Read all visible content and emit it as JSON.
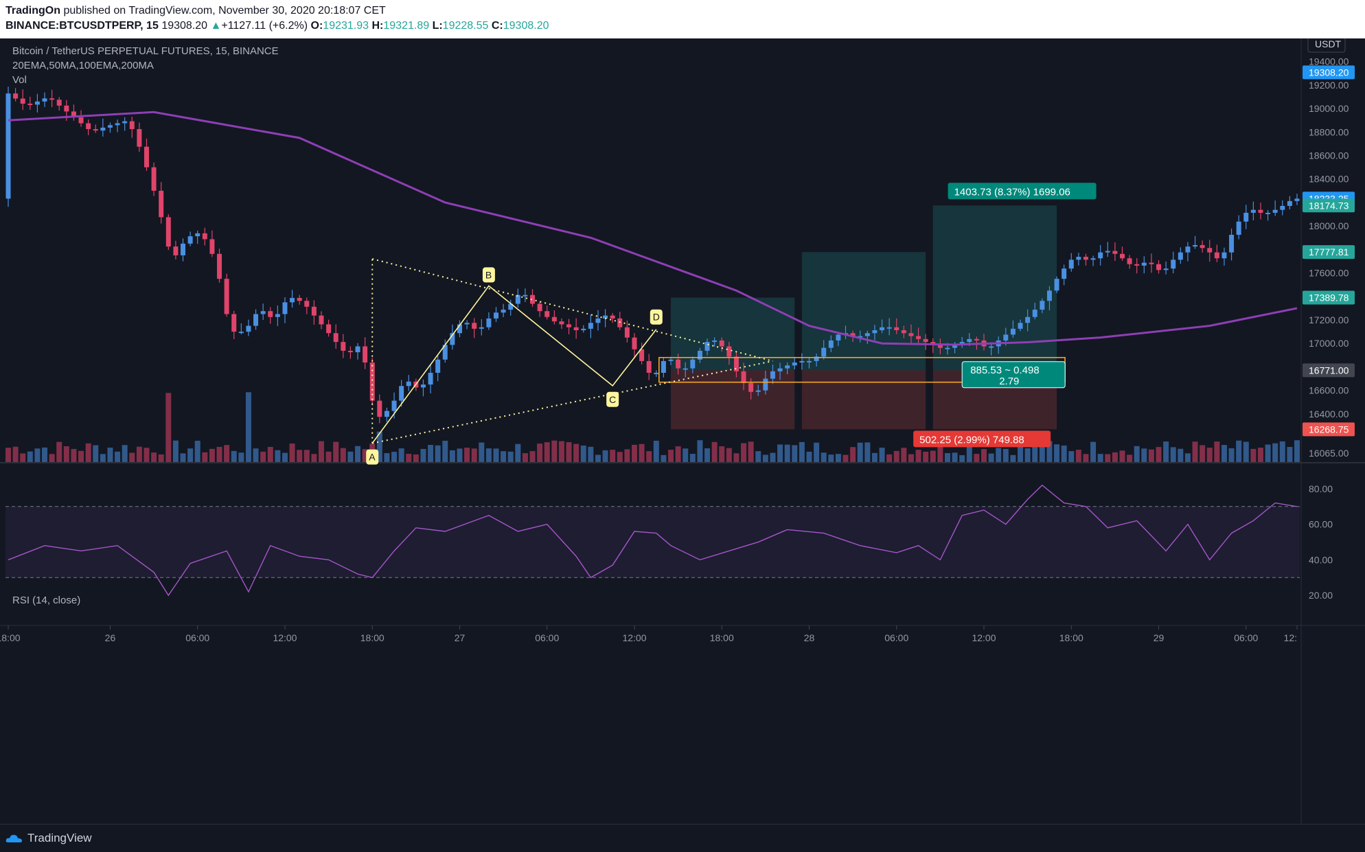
{
  "header": {
    "publisher": "TradingOn",
    "published_text": "published on TradingView.com, November 30, 2020 20:18:07 CET",
    "symbol": "BINANCE:BTCUSDTPERP, 15",
    "last_price": "19308.20",
    "change": "+1127.11 (+6.2%)",
    "o_label": "O:",
    "o": "19231.93",
    "h_label": "H:",
    "h": "19321.89",
    "l_label": "L:",
    "l": "19228.55",
    "c_label": "C:",
    "c": "19308.20"
  },
  "legend": {
    "title": "Bitcoin / TetherUS PERPETUAL FUTURES, 15, BINANCE",
    "mas": "20EMA,50MA,100EMA,200MA",
    "vol": "Vol",
    "rsi": "RSI (14, close)"
  },
  "footer": {
    "brand": "TradingView"
  },
  "colors": {
    "background": "#131722",
    "bull": "#4a90e2",
    "bear": "#e0446a",
    "ma": "#8e3fb5",
    "rsi": "#a656c9",
    "target": "#26a69a",
    "stop": "#ef5350",
    "pattern": "#fff59d",
    "zone": "#f5a623"
  },
  "chart_data": {
    "type": "candlestick",
    "currency_label": "USDT",
    "y_ticks": [
      16065,
      16400,
      16600,
      16800,
      17000,
      17200,
      17400,
      17600,
      17800,
      18000,
      18200,
      18400,
      18600,
      18800,
      19000,
      19200,
      19400
    ],
    "y_tick_labels": [
      "16065.00",
      "16400.00",
      "16600.00",
      "16800.00",
      "17000.00",
      "17200.00",
      "17400.00",
      "17600.00",
      "17800.00",
      "18000.00",
      "18200.00",
      "18400.00",
      "18600.00",
      "18800.00",
      "19000.00",
      "19200.00",
      "19400.00"
    ],
    "x_ticks": [
      "18:00",
      "26",
      "06:00",
      "12:00",
      "18:00",
      "27",
      "06:00",
      "12:00",
      "18:00",
      "28",
      "06:00",
      "12:00",
      "18:00",
      "29",
      "06:00",
      "12:"
    ],
    "price_tags": [
      {
        "label": "19308.20",
        "color": "#2196f3"
      },
      {
        "label": "18233.25",
        "color": "#2196f3"
      },
      {
        "label": "18174.73",
        "color": "#26a69a"
      },
      {
        "label": "17777.81",
        "color": "#26a69a"
      },
      {
        "label": "17389.78",
        "color": "#26a69a"
      },
      {
        "label": "16771.00",
        "color": "#434651"
      },
      {
        "label": "16268.75",
        "color": "#ef5350"
      }
    ],
    "close_path": [
      [
        0,
        19150
      ],
      [
        3,
        19020
      ],
      [
        6,
        19100
      ],
      [
        9,
        18950
      ],
      [
        12,
        18800
      ],
      [
        14,
        18850
      ],
      [
        17,
        18900
      ],
      [
        19,
        18600
      ],
      [
        21,
        18200
      ],
      [
        23,
        17700
      ],
      [
        25,
        17900
      ],
      [
        27,
        17950
      ],
      [
        29,
        17700
      ],
      [
        31,
        17100
      ],
      [
        33,
        17100
      ],
      [
        35,
        17300
      ],
      [
        37,
        17200
      ],
      [
        39,
        17400
      ],
      [
        41,
        17350
      ],
      [
        43,
        17200
      ],
      [
        45,
        17050
      ],
      [
        47,
        16900
      ],
      [
        49,
        17000
      ],
      [
        51,
        16350
      ],
      [
        53,
        16450
      ],
      [
        55,
        16700
      ],
      [
        57,
        16600
      ],
      [
        59,
        16800
      ],
      [
        61,
        17050
      ],
      [
        63,
        17200
      ],
      [
        65,
        17100
      ],
      [
        67,
        17250
      ],
      [
        69,
        17300
      ],
      [
        71,
        17450
      ],
      [
        73,
        17300
      ],
      [
        75,
        17200
      ],
      [
        77,
        17150
      ],
      [
        79,
        17100
      ],
      [
        81,
        17200
      ],
      [
        83,
        17250
      ],
      [
        85,
        17100
      ],
      [
        87,
        16900
      ],
      [
        89,
        16700
      ],
      [
        91,
        16900
      ],
      [
        93,
        16750
      ],
      [
        95,
        16900
      ],
      [
        97,
        17050
      ],
      [
        99,
        16950
      ],
      [
        101,
        16700
      ],
      [
        103,
        16550
      ],
      [
        105,
        16750
      ],
      [
        107,
        16800
      ],
      [
        109,
        16850
      ],
      [
        111,
        16850
      ],
      [
        113,
        17000
      ],
      [
        115,
        17100
      ],
      [
        117,
        17050
      ],
      [
        119,
        17100
      ],
      [
        121,
        17150
      ],
      [
        123,
        17100
      ],
      [
        125,
        17050
      ],
      [
        127,
        17000
      ],
      [
        129,
        16950
      ],
      [
        131,
        17000
      ],
      [
        133,
        17050
      ],
      [
        135,
        16950
      ],
      [
        137,
        17050
      ],
      [
        139,
        17150
      ],
      [
        141,
        17250
      ],
      [
        143,
        17400
      ],
      [
        145,
        17600
      ],
      [
        147,
        17750
      ],
      [
        149,
        17700
      ],
      [
        151,
        17800
      ],
      [
        153,
        17750
      ],
      [
        155,
        17650
      ],
      [
        157,
        17700
      ],
      [
        159,
        17600
      ],
      [
        161,
        17750
      ],
      [
        163,
        17850
      ],
      [
        165,
        17800
      ],
      [
        167,
        17700
      ],
      [
        169,
        18000
      ],
      [
        171,
        18150
      ],
      [
        173,
        18100
      ],
      [
        175,
        18150
      ],
      [
        177,
        18233
      ]
    ],
    "ma200_path": [
      [
        0,
        18900
      ],
      [
        20,
        18970
      ],
      [
        40,
        18750
      ],
      [
        60,
        18200
      ],
      [
        80,
        17900
      ],
      [
        100,
        17450
      ],
      [
        110,
        17150
      ],
      [
        120,
        17000
      ],
      [
        130,
        16990
      ],
      [
        140,
        17010
      ],
      [
        150,
        17050
      ],
      [
        165,
        17150
      ],
      [
        177,
        17300
      ]
    ],
    "pattern_points": [
      {
        "label": "A",
        "x": 50,
        "price": 16150
      },
      {
        "label": "B",
        "x": 66,
        "price": 17490
      },
      {
        "label": "C",
        "x": 83,
        "price": 16640
      },
      {
        "label": "D",
        "x": 89,
        "price": 17120
      }
    ],
    "triangle_top_price": 17720,
    "positions": [
      {
        "x0": 91,
        "x1": 108,
        "entry": 16771,
        "target": 17389.78,
        "stop": 16268.75
      },
      {
        "x0": 109,
        "x1": 126,
        "entry": 16771,
        "target": 17777.81,
        "stop": 16268.75
      },
      {
        "x0": 127,
        "x1": 144,
        "entry": 16771,
        "target": 18174.73,
        "stop": 16268.75
      }
    ],
    "target_label": "1403.73 (8.37%) 1699.06",
    "stop_label": "502.25 (2.99%) 749.88",
    "entry_zone": {
      "low": 16670,
      "high": 16880,
      "label_line1": "885.53 ~ 0.498",
      "label_line2": "2.79"
    },
    "rsi_levels": {
      "upper": 70,
      "lower": 30
    },
    "rsi_ticks": [
      "20.00",
      "40.00",
      "60.00",
      "80.00"
    ],
    "rsi_path": [
      [
        0,
        40
      ],
      [
        5,
        48
      ],
      [
        10,
        45
      ],
      [
        15,
        48
      ],
      [
        20,
        33
      ],
      [
        22,
        20
      ],
      [
        25,
        38
      ],
      [
        30,
        45
      ],
      [
        33,
        22
      ],
      [
        36,
        48
      ],
      [
        40,
        42
      ],
      [
        44,
        40
      ],
      [
        48,
        32
      ],
      [
        50,
        30
      ],
      [
        53,
        45
      ],
      [
        56,
        58
      ],
      [
        60,
        56
      ],
      [
        64,
        62
      ],
      [
        66,
        65
      ],
      [
        70,
        56
      ],
      [
        74,
        60
      ],
      [
        78,
        42
      ],
      [
        80,
        30
      ],
      [
        83,
        37
      ],
      [
        86,
        56
      ],
      [
        89,
        55
      ],
      [
        91,
        48
      ],
      [
        95,
        40
      ],
      [
        99,
        45
      ],
      [
        103,
        50
      ],
      [
        107,
        57
      ],
      [
        112,
        55
      ],
      [
        117,
        48
      ],
      [
        122,
        44
      ],
      [
        125,
        48
      ],
      [
        128,
        40
      ],
      [
        131,
        65
      ],
      [
        134,
        68
      ],
      [
        137,
        60
      ],
      [
        140,
        74
      ],
      [
        142,
        82
      ],
      [
        145,
        72
      ],
      [
        148,
        70
      ],
      [
        151,
        58
      ],
      [
        155,
        62
      ],
      [
        159,
        45
      ],
      [
        162,
        60
      ],
      [
        165,
        40
      ],
      [
        168,
        55
      ],
      [
        171,
        62
      ],
      [
        174,
        72
      ],
      [
        177,
        70
      ]
    ]
  }
}
